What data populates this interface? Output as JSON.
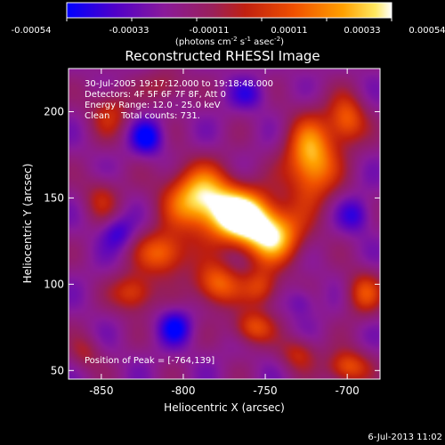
{
  "chart_data": {
    "type": "heatmap",
    "title": "Reconstructed RHESSI Image",
    "xlabel": "Heliocentric X (arcsec)",
    "ylabel": "Heliocentric Y (arcsec)",
    "xlim": [
      -870,
      -680
    ],
    "ylim": [
      45,
      225
    ],
    "x_ticks": [
      -850,
      -800,
      -750,
      -700
    ],
    "y_ticks": [
      50,
      100,
      150,
      200
    ],
    "colorbar": {
      "ticks": [
        "-0.00054",
        "-0.00033",
        "-0.00011",
        "0.00011",
        "0.00033",
        "0.00054"
      ],
      "unit_label": "(photons cm⁻² s⁻¹ asec⁻²)",
      "range": [
        -0.00054,
        0.00054
      ]
    },
    "info_lines": [
      "30-Jul-2005 19:17:12.000 to 19:18:48.000",
      "Detectors: 4F 5F 6F 7F 8F, Att 0",
      "Energy Range: 12.0 - 25.0 keV",
      "Clean    Total counts: 731."
    ],
    "peak_label": "Position of Peak = [-764,139]",
    "peak": [
      -764,
      139
    ],
    "sources": [
      {
        "x": -764,
        "y": 139,
        "amp": 1.0,
        "sx": 14,
        "sy": 11
      },
      {
        "x": -790,
        "y": 150,
        "amp": 0.85,
        "sx": 15,
        "sy": 13
      },
      {
        "x": -745,
        "y": 127,
        "amp": 0.75,
        "sx": 13,
        "sy": 11
      },
      {
        "x": -722,
        "y": 172,
        "amp": 0.82,
        "sx": 11,
        "sy": 17
      },
      {
        "x": -700,
        "y": 195,
        "amp": 0.55,
        "sx": 8,
        "sy": 10
      },
      {
        "x": -812,
        "y": 118,
        "amp": 0.6,
        "sx": 11,
        "sy": 9
      },
      {
        "x": -780,
        "y": 100,
        "amp": 0.6,
        "sx": 10,
        "sy": 9
      },
      {
        "x": -752,
        "y": 98,
        "amp": 0.45,
        "sx": 8,
        "sy": 8
      },
      {
        "x": -830,
        "y": 95,
        "amp": 0.5,
        "sx": 9,
        "sy": 8
      },
      {
        "x": -758,
        "y": 75,
        "amp": 0.5,
        "sx": 9,
        "sy": 7
      },
      {
        "x": -700,
        "y": 52,
        "amp": 0.55,
        "sx": 9,
        "sy": 7
      },
      {
        "x": -845,
        "y": 200,
        "amp": 0.35,
        "sx": 9,
        "sy": 10
      },
      {
        "x": -850,
        "y": 150,
        "amp": 0.3,
        "sx": 8,
        "sy": 9
      },
      {
        "x": -810,
        "y": 215,
        "amp": 0.3,
        "sx": 9,
        "sy": 7
      },
      {
        "x": -690,
        "y": 95,
        "amp": 0.45,
        "sx": 8,
        "sy": 9
      },
      {
        "x": -730,
        "y": 60,
        "amp": 0.35,
        "sx": 8,
        "sy": 7
      },
      {
        "x": -860,
        "y": 60,
        "amp": 0.25,
        "sx": 7,
        "sy": 7
      },
      {
        "x": -822,
        "y": 185,
        "amp": -0.45,
        "sx": 7,
        "sy": 7
      },
      {
        "x": -805,
        "y": 75,
        "amp": -0.4,
        "sx": 7,
        "sy": 7
      },
      {
        "x": -840,
        "y": 130,
        "amp": -0.3,
        "sx": 7,
        "sy": 7
      },
      {
        "x": -695,
        "y": 140,
        "amp": -0.3,
        "sx": 7,
        "sy": 7
      },
      {
        "x": -760,
        "y": 210,
        "amp": -0.25,
        "sx": 8,
        "sy": 6
      },
      {
        "x": -728,
        "y": 90,
        "amp": -0.2,
        "sx": 6,
        "sy": 6
      }
    ]
  },
  "footer": {
    "timestamp": "6-Jul-2013 11:02"
  }
}
